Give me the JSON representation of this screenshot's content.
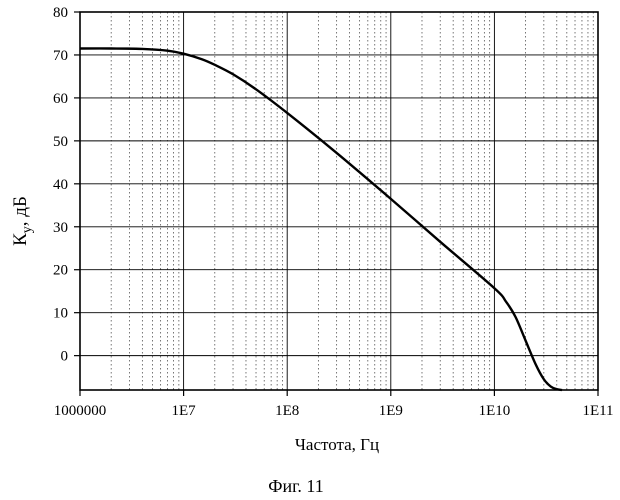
{
  "chart_data": {
    "type": "line",
    "x_scale": "log",
    "xlabel": "Частота, Гц",
    "ylabel_main": "К",
    "ylabel_sub": "у",
    "ylabel_rest": ", дБ",
    "xlim": [
      1000000,
      100000000000
    ],
    "ylim": [
      -8,
      80
    ],
    "x_ticks": [
      {
        "value": 1000000,
        "label": "1000000"
      },
      {
        "value": 10000000,
        "label": "1E7"
      },
      {
        "value": 100000000,
        "label": "1E8"
      },
      {
        "value": 1000000000,
        "label": "1E9"
      },
      {
        "value": 10000000000,
        "label": "1E10"
      },
      {
        "value": 100000000000,
        "label": "1E11"
      }
    ],
    "y_ticks": [
      0,
      10,
      20,
      30,
      40,
      50,
      60,
      70,
      80
    ],
    "grid": true,
    "series": [
      {
        "x": [
          1000000,
          2000000,
          4000000,
          7000000,
          10000000,
          15000000,
          20000000,
          30000000,
          50000000,
          100000000,
          300000000,
          1000000000,
          3000000000,
          10000000000,
          13000000000,
          16000000000,
          20000000000,
          25000000000,
          30000000000,
          35000000000,
          40000000000,
          45000000000
        ],
        "y": [
          71.5,
          71.5,
          71.4,
          71.0,
          70.3,
          69.0,
          67.7,
          65.5,
          62.0,
          56.5,
          47.2,
          36.5,
          26.5,
          15.7,
          12.5,
          9.0,
          3.5,
          -2.0,
          -5.5,
          -7.2,
          -7.8,
          -8.0
        ]
      }
    ]
  },
  "caption": "Фиг. 11"
}
